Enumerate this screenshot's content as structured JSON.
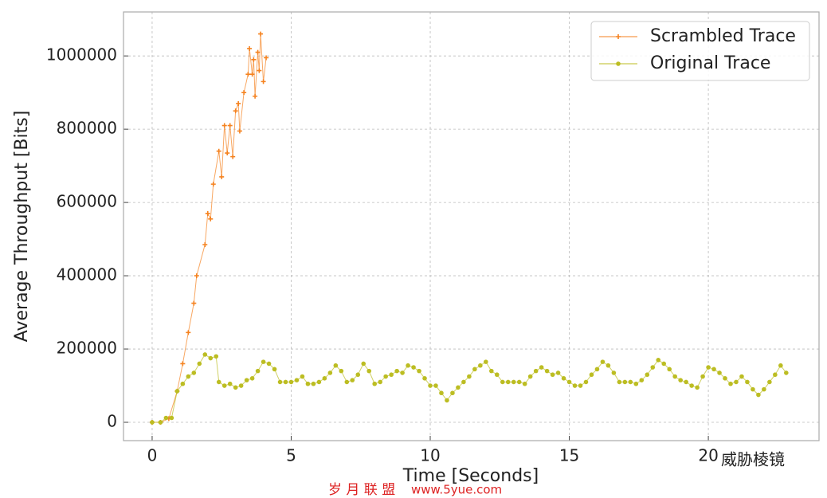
{
  "chart_data": {
    "type": "line",
    "xlabel": "Time [Seconds]",
    "ylabel": "Average Throughput [Bits]",
    "xlim": [
      -1.03,
      23.98
    ],
    "ylim": [
      -50000,
      1120000
    ],
    "xticks": [
      0,
      5,
      10,
      15,
      20
    ],
    "yticks": [
      0,
      200000,
      400000,
      600000,
      800000,
      1000000
    ],
    "grid": true,
    "legend": "upper right",
    "watermarks": [
      "威胁棱镜",
      "岁 月 联 盟",
      "www.5yue.com"
    ],
    "series": [
      {
        "name": "Scrambled Trace",
        "color": "#f5821f",
        "x": [
          0,
          0.3,
          0.6,
          0.9,
          1.1,
          1.3,
          1.5,
          1.6,
          1.9,
          2.0,
          2.1,
          2.2,
          2.4,
          2.5,
          2.6,
          2.7,
          2.8,
          2.9,
          3.0,
          3.1,
          3.15,
          3.3,
          3.45,
          3.5,
          3.6,
          3.65,
          3.7,
          3.8,
          3.85,
          3.9,
          4.0,
          4.1
        ],
        "values": [
          0,
          0,
          10000,
          85000,
          160000,
          245000,
          325000,
          400000,
          485000,
          570000,
          555000,
          650000,
          740000,
          670000,
          810000,
          735000,
          810000,
          725000,
          850000,
          870000,
          795000,
          900000,
          950000,
          1020000,
          950000,
          990000,
          890000,
          1010000,
          960000,
          1060000,
          930000,
          995000
        ]
      },
      {
        "name": "Original Trace",
        "color": "#bcbd22",
        "x": [
          0,
          0.3,
          0.5,
          0.7,
          0.9,
          1.1,
          1.3,
          1.5,
          1.7,
          1.9,
          2.1,
          2.3,
          2.4,
          2.6,
          2.8,
          3.0,
          3.2,
          3.4,
          3.6,
          3.8,
          4.0,
          4.2,
          4.4,
          4.6,
          4.8,
          5.0,
          5.2,
          5.4,
          5.6,
          5.8,
          6.0,
          6.2,
          6.4,
          6.6,
          6.8,
          7.0,
          7.2,
          7.4,
          7.6,
          7.8,
          8.0,
          8.2,
          8.4,
          8.6,
          8.8,
          9.0,
          9.2,
          9.4,
          9.6,
          9.8,
          10.0,
          10.2,
          10.4,
          10.6,
          10.8,
          11.0,
          11.2,
          11.4,
          11.6,
          11.8,
          12.0,
          12.2,
          12.4,
          12.6,
          12.8,
          13.0,
          13.2,
          13.4,
          13.6,
          13.8,
          14.0,
          14.2,
          14.4,
          14.6,
          14.8,
          15.0,
          15.2,
          15.4,
          15.6,
          15.8,
          16.0,
          16.2,
          16.4,
          16.6,
          16.8,
          17.0,
          17.2,
          17.4,
          17.6,
          17.8,
          18.0,
          18.2,
          18.4,
          18.6,
          18.8,
          19.0,
          19.2,
          19.4,
          19.6,
          19.8,
          20.0,
          20.2,
          20.4,
          20.6,
          20.8,
          21.0,
          21.2,
          21.4,
          21.6,
          21.8,
          22.0,
          22.2,
          22.4,
          22.6,
          22.8
        ],
        "values": [
          0,
          0,
          12000,
          12000,
          85000,
          105000,
          125000,
          135000,
          160000,
          185000,
          175000,
          180000,
          110000,
          100000,
          105000,
          95000,
          100000,
          115000,
          120000,
          140000,
          165000,
          160000,
          145000,
          110000,
          110000,
          110000,
          115000,
          125000,
          105000,
          105000,
          110000,
          120000,
          135000,
          155000,
          140000,
          110000,
          115000,
          130000,
          160000,
          140000,
          105000,
          110000,
          125000,
          130000,
          140000,
          135000,
          155000,
          150000,
          140000,
          120000,
          100000,
          100000,
          80000,
          60000,
          80000,
          95000,
          110000,
          125000,
          145000,
          155000,
          165000,
          140000,
          130000,
          110000,
          110000,
          110000,
          110000,
          105000,
          125000,
          140000,
          150000,
          140000,
          130000,
          135000,
          120000,
          110000,
          100000,
          100000,
          110000,
          130000,
          145000,
          165000,
          155000,
          135000,
          110000,
          110000,
          110000,
          105000,
          115000,
          130000,
          150000,
          170000,
          160000,
          145000,
          125000,
          115000,
          110000,
          100000,
          95000,
          125000,
          150000,
          145000,
          135000,
          120000,
          105000,
          110000,
          125000,
          110000,
          90000,
          75000,
          90000,
          110000,
          130000,
          155000,
          135000
        ]
      }
    ]
  }
}
